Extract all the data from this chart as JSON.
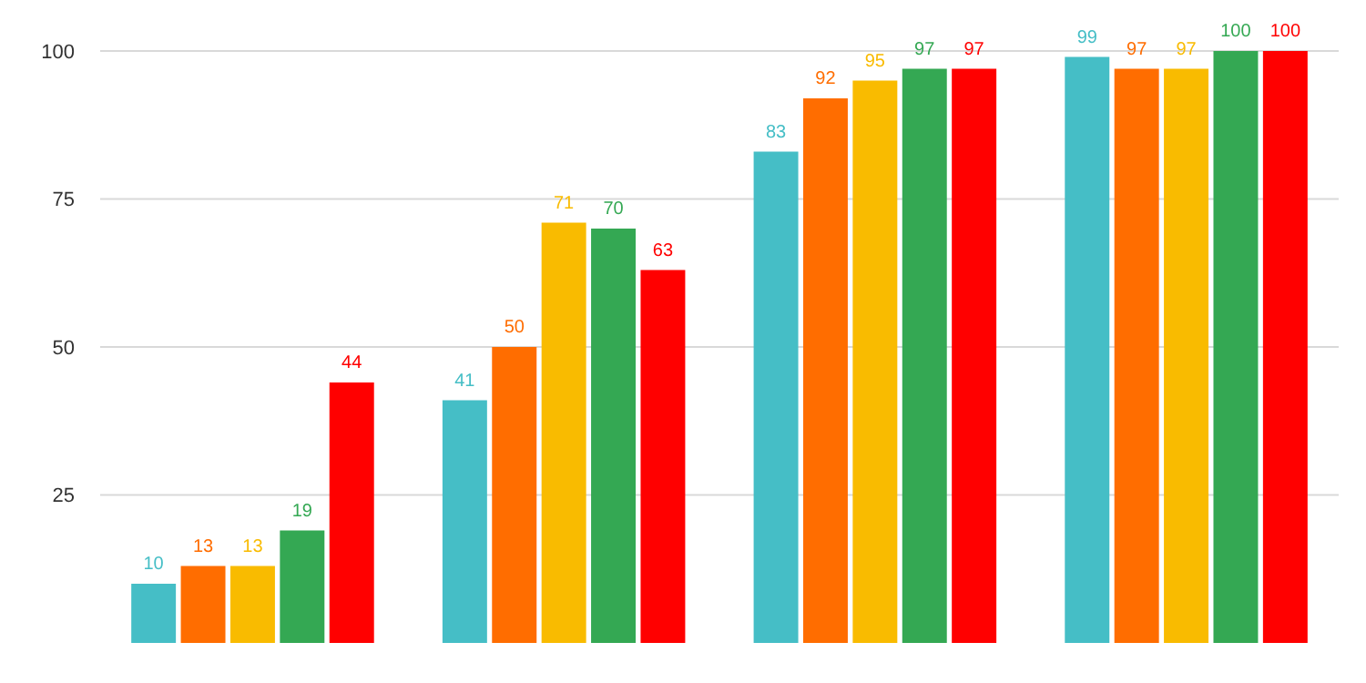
{
  "chart_data": {
    "type": "bar",
    "categories": [
      null,
      null,
      null,
      null
    ],
    "series": [
      {
        "color": "#45bec6",
        "values": [
          10,
          41,
          83,
          99
        ]
      },
      {
        "color": "#ff6d00",
        "values": [
          13,
          50,
          92,
          97
        ]
      },
      {
        "color": "#f9bb00",
        "values": [
          13,
          71,
          95,
          97
        ]
      },
      {
        "color": "#34a853",
        "values": [
          19,
          70,
          97,
          100
        ]
      },
      {
        "color": "#ff0000",
        "values": [
          44,
          63,
          97,
          100
        ]
      }
    ],
    "ylim": [
      0,
      100
    ],
    "yticks": [
      25,
      50,
      75,
      100
    ],
    "grid": "y",
    "data_labels": true
  }
}
